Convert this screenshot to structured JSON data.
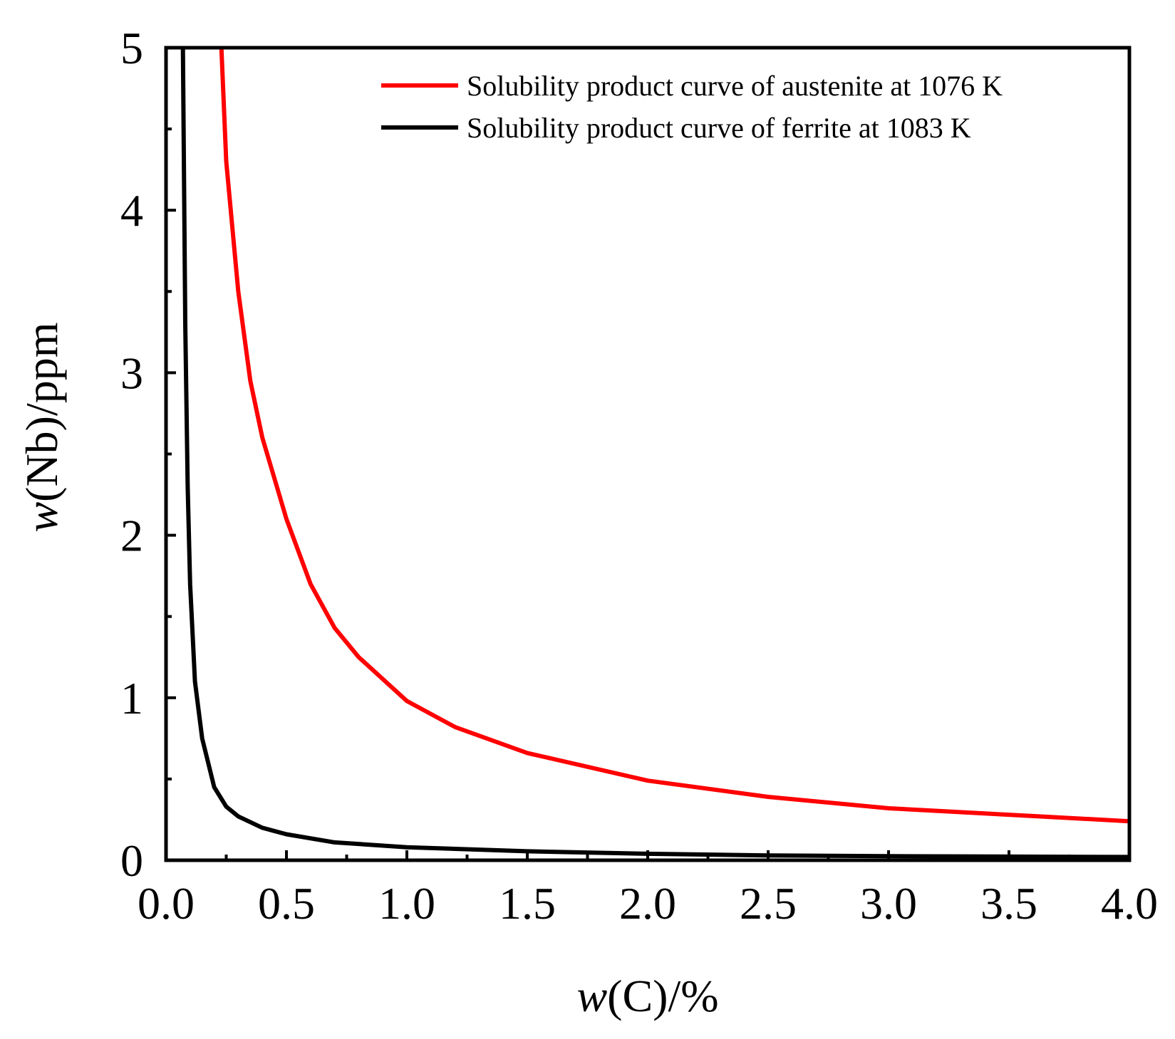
{
  "chart_data": {
    "type": "line",
    "title": "",
    "xlabel_italic": "w",
    "xlabel_rest": "(C)/%",
    "ylabel_italic": "w",
    "ylabel_rest": "(Nb)/ppm",
    "xlim": [
      0.0,
      4.0
    ],
    "ylim": [
      0,
      5
    ],
    "x_ticks": [
      "0.0",
      "0.5",
      "1.0",
      "1.5",
      "2.0",
      "2.5",
      "3.0",
      "3.5",
      "4.0"
    ],
    "y_ticks": [
      "0",
      "1",
      "2",
      "3",
      "4",
      "5"
    ],
    "grid": false,
    "legend_position": "top-right",
    "series": [
      {
        "name": "Solubility product curve of austenite at 1076 K",
        "color": "#ff0000",
        "x": [
          0.23,
          0.25,
          0.3,
          0.35,
          0.4,
          0.45,
          0.5,
          0.6,
          0.7,
          0.8,
          1.0,
          1.2,
          1.5,
          2.0,
          2.5,
          3.0,
          3.5,
          4.0
        ],
        "y": [
          5.0,
          4.3,
          3.5,
          2.95,
          2.6,
          2.35,
          2.1,
          1.7,
          1.43,
          1.25,
          0.98,
          0.82,
          0.66,
          0.49,
          0.39,
          0.32,
          0.28,
          0.24
        ]
      },
      {
        "name": "Solubility product curve of ferrite at 1083 K",
        "color": "#000000",
        "x": [
          0.07,
          0.08,
          0.09,
          0.1,
          0.12,
          0.15,
          0.2,
          0.25,
          0.3,
          0.4,
          0.5,
          0.7,
          1.0,
          1.5,
          2.0,
          2.5,
          3.0,
          4.0
        ],
        "y": [
          5.0,
          3.3,
          2.3,
          1.7,
          1.1,
          0.75,
          0.45,
          0.33,
          0.27,
          0.2,
          0.16,
          0.11,
          0.08,
          0.055,
          0.04,
          0.03,
          0.025,
          0.02
        ]
      }
    ]
  }
}
